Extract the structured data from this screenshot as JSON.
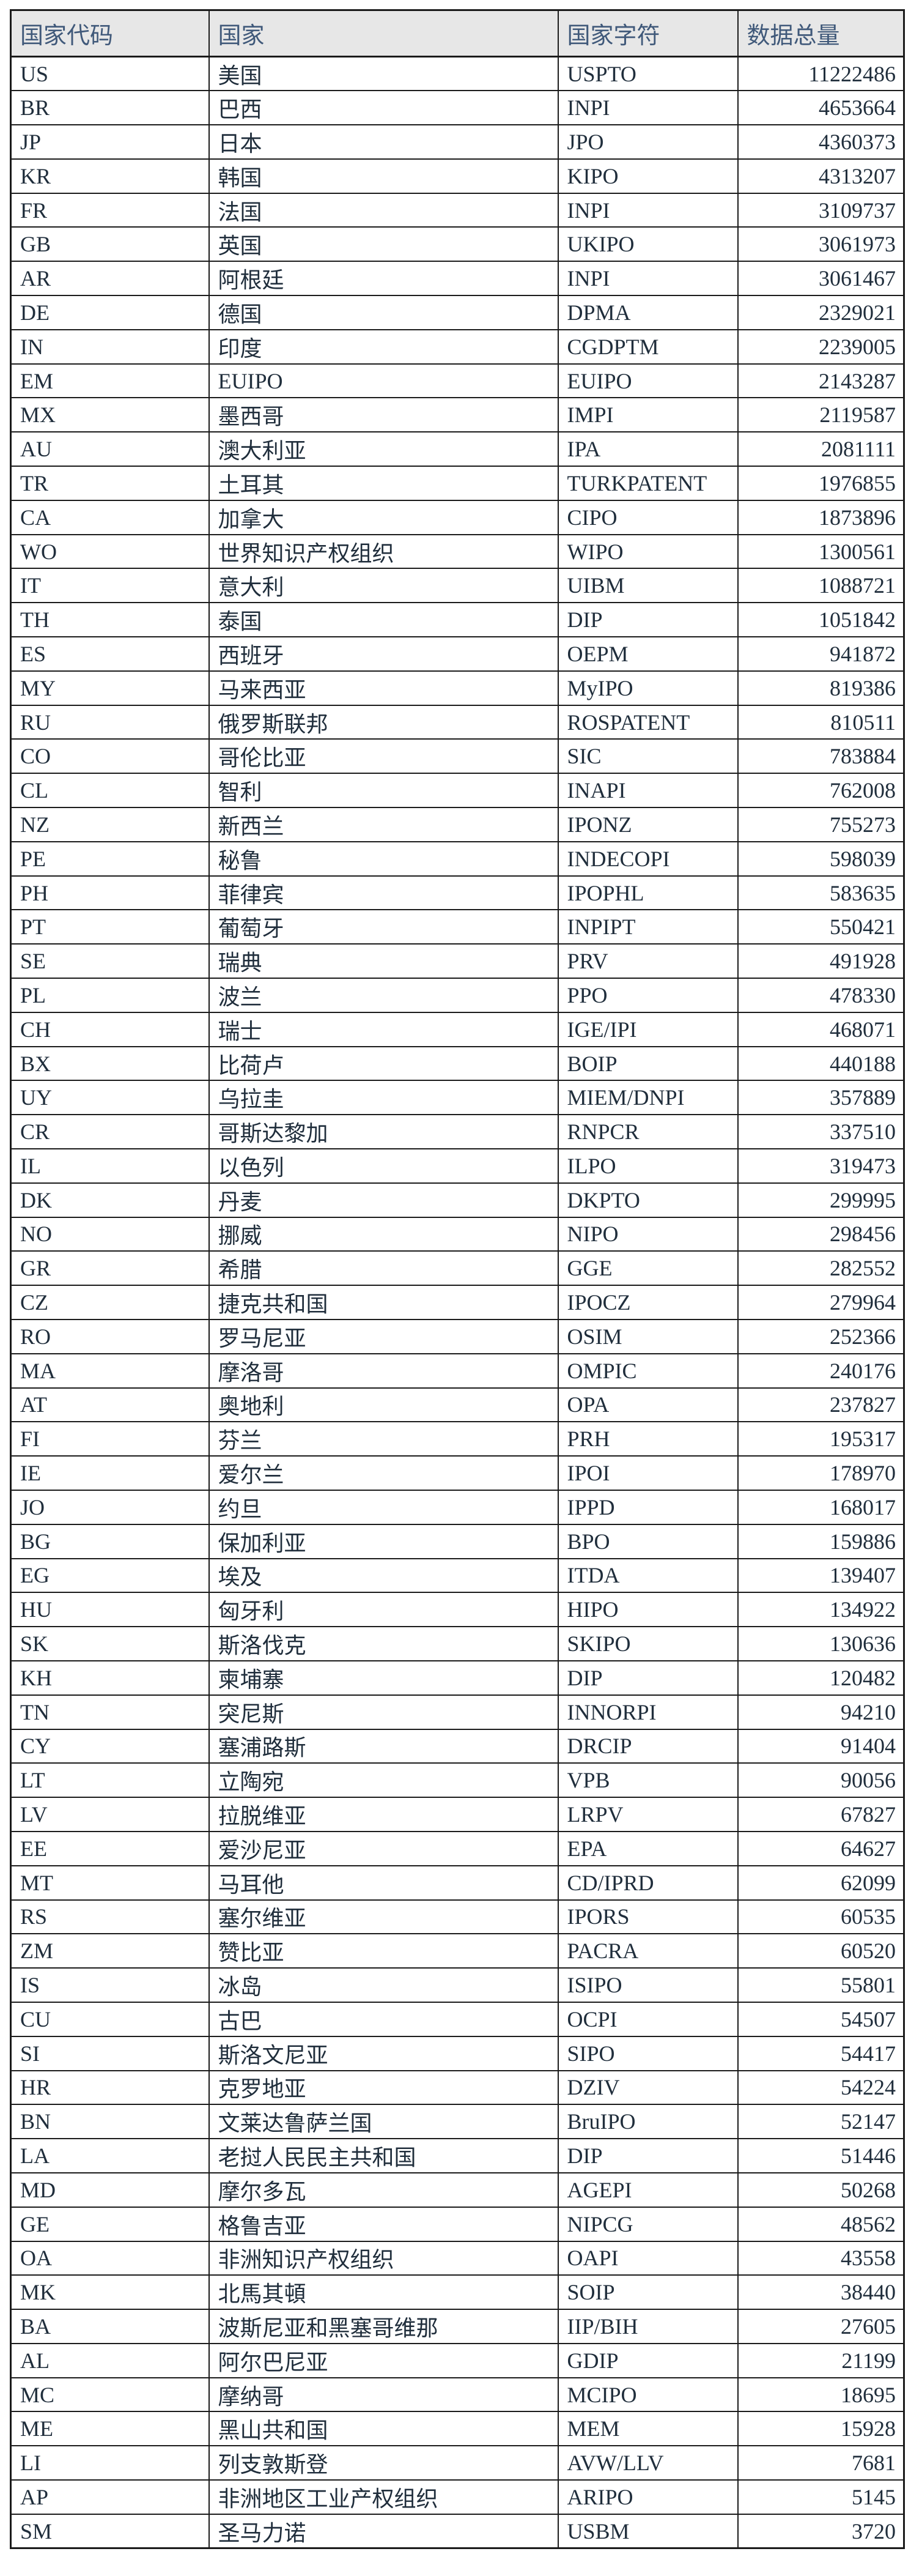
{
  "colors": {
    "header_bg": "#e7e7e7",
    "header_text": "#40597a",
    "body_text": "#202e3c",
    "border": "#1b1b1b"
  },
  "table": {
    "columns": [
      {
        "label": "国家代码"
      },
      {
        "label": "国家"
      },
      {
        "label": "国家字符"
      },
      {
        "label": "数据总量"
      }
    ],
    "rows": [
      {
        "code": "US",
        "country": "美国",
        "office": "USPTO",
        "total": 11222486
      },
      {
        "code": "BR",
        "country": "巴西",
        "office": "INPI",
        "total": 4653664
      },
      {
        "code": "JP",
        "country": "日本",
        "office": "JPO",
        "total": 4360373
      },
      {
        "code": "KR",
        "country": "韩国",
        "office": "KIPO",
        "total": 4313207
      },
      {
        "code": "FR",
        "country": "法国",
        "office": "INPI",
        "total": 3109737
      },
      {
        "code": "GB",
        "country": "英国",
        "office": "UKIPO",
        "total": 3061973
      },
      {
        "code": "AR",
        "country": "阿根廷",
        "office": "INPI",
        "total": 3061467
      },
      {
        "code": "DE",
        "country": "德国",
        "office": "DPMA",
        "total": 2329021
      },
      {
        "code": "IN",
        "country": "印度",
        "office": "CGDPTM",
        "total": 2239005
      },
      {
        "code": "EM",
        "country": "EUIPO",
        "office": "EUIPO",
        "total": 2143287
      },
      {
        "code": "MX",
        "country": "墨西哥",
        "office": "IMPI",
        "total": 2119587
      },
      {
        "code": "AU",
        "country": "澳大利亚",
        "office": "IPA",
        "total": 2081111
      },
      {
        "code": "TR",
        "country": "土耳其",
        "office": "TURKPATENT",
        "total": 1976855
      },
      {
        "code": "CA",
        "country": "加拿大",
        "office": "CIPO",
        "total": 1873896
      },
      {
        "code": "WO",
        "country": "世界知识产权组织",
        "office": "WIPO",
        "total": 1300561
      },
      {
        "code": "IT",
        "country": "意大利",
        "office": "UIBM",
        "total": 1088721
      },
      {
        "code": "TH",
        "country": "泰国",
        "office": "DIP",
        "total": 1051842
      },
      {
        "code": "ES",
        "country": "西班牙",
        "office": "OEPM",
        "total": 941872
      },
      {
        "code": "MY",
        "country": "马来西亚",
        "office": "MyIPO",
        "total": 819386
      },
      {
        "code": "RU",
        "country": "俄罗斯联邦",
        "office": "ROSPATENT",
        "total": 810511
      },
      {
        "code": "CO",
        "country": "哥伦比亚",
        "office": "SIC",
        "total": 783884
      },
      {
        "code": "CL",
        "country": "智利",
        "office": "INAPI",
        "total": 762008
      },
      {
        "code": "NZ",
        "country": "新西兰",
        "office": "IPONZ",
        "total": 755273
      },
      {
        "code": "PE",
        "country": "秘鲁",
        "office": "INDECOPI",
        "total": 598039
      },
      {
        "code": "PH",
        "country": "菲律宾",
        "office": "IPOPHL",
        "total": 583635
      },
      {
        "code": "PT",
        "country": "葡萄牙",
        "office": "INPIPT",
        "total": 550421
      },
      {
        "code": "SE",
        "country": "瑞典",
        "office": "PRV",
        "total": 491928
      },
      {
        "code": "PL",
        "country": "波兰",
        "office": "PPO",
        "total": 478330
      },
      {
        "code": "CH",
        "country": "瑞士",
        "office": "IGE/IPI",
        "total": 468071
      },
      {
        "code": "BX",
        "country": "比荷卢",
        "office": "BOIP",
        "total": 440188
      },
      {
        "code": "UY",
        "country": "乌拉圭",
        "office": "MIEM/DNPI",
        "total": 357889
      },
      {
        "code": "CR",
        "country": "哥斯达黎加",
        "office": "RNPCR",
        "total": 337510
      },
      {
        "code": "IL",
        "country": "以色列",
        "office": "ILPO",
        "total": 319473
      },
      {
        "code": "DK",
        "country": "丹麦",
        "office": "DKPTO",
        "total": 299995
      },
      {
        "code": "NO",
        "country": "挪威",
        "office": "NIPO",
        "total": 298456
      },
      {
        "code": "GR",
        "country": "希腊",
        "office": "GGE",
        "total": 282552
      },
      {
        "code": "CZ",
        "country": "捷克共和国",
        "office": "IPOCZ",
        "total": 279964
      },
      {
        "code": "RO",
        "country": "罗马尼亚",
        "office": "OSIM",
        "total": 252366
      },
      {
        "code": "MA",
        "country": "摩洛哥",
        "office": "OMPIC",
        "total": 240176
      },
      {
        "code": "AT",
        "country": "奥地利",
        "office": "OPA",
        "total": 237827
      },
      {
        "code": "FI",
        "country": "芬兰",
        "office": "PRH",
        "total": 195317
      },
      {
        "code": "IE",
        "country": "爱尔兰",
        "office": "IPOI",
        "total": 178970
      },
      {
        "code": "JO",
        "country": "约旦",
        "office": "IPPD",
        "total": 168017
      },
      {
        "code": "BG",
        "country": "保加利亚",
        "office": "BPO",
        "total": 159886
      },
      {
        "code": "EG",
        "country": "埃及",
        "office": "ITDA",
        "total": 139407
      },
      {
        "code": "HU",
        "country": "匈牙利",
        "office": "HIPO",
        "total": 134922
      },
      {
        "code": "SK",
        "country": "斯洛伐克",
        "office": "SKIPO",
        "total": 130636
      },
      {
        "code": "KH",
        "country": "柬埔寨",
        "office": "DIP",
        "total": 120482
      },
      {
        "code": "TN",
        "country": "突尼斯",
        "office": "INNORPI",
        "total": 94210
      },
      {
        "code": "CY",
        "country": "塞浦路斯",
        "office": "DRCIP",
        "total": 91404
      },
      {
        "code": "LT",
        "country": "立陶宛",
        "office": "VPB",
        "total": 90056
      },
      {
        "code": "LV",
        "country": "拉脱维亚",
        "office": "LRPV",
        "total": 67827
      },
      {
        "code": "EE",
        "country": "爱沙尼亚",
        "office": "EPA",
        "total": 64627
      },
      {
        "code": "MT",
        "country": "马耳他",
        "office": "CD/IPRD",
        "total": 62099
      },
      {
        "code": "RS",
        "country": "塞尔维亚",
        "office": "IPORS",
        "total": 60535
      },
      {
        "code": "ZM",
        "country": "赞比亚",
        "office": "PACRA",
        "total": 60520
      },
      {
        "code": "IS",
        "country": "冰岛",
        "office": "ISIPO",
        "total": 55801
      },
      {
        "code": "CU",
        "country": "古巴",
        "office": "OCPI",
        "total": 54507
      },
      {
        "code": "SI",
        "country": "斯洛文尼亚",
        "office": "SIPO",
        "total": 54417
      },
      {
        "code": "HR",
        "country": "克罗地亚",
        "office": "DZIV",
        "total": 54224
      },
      {
        "code": "BN",
        "country": "文莱达鲁萨兰国",
        "office": "BruIPO",
        "total": 52147
      },
      {
        "code": "LA",
        "country": "老挝人民民主共和国",
        "office": "DIP",
        "total": 51446
      },
      {
        "code": "MD",
        "country": "摩尔多瓦",
        "office": "AGEPI",
        "total": 50268
      },
      {
        "code": "GE",
        "country": "格鲁吉亚",
        "office": "NIPCG",
        "total": 48562
      },
      {
        "code": "OA",
        "country": "非洲知识产权组织",
        "office": "OAPI",
        "total": 43558
      },
      {
        "code": "MK",
        "country": "北馬其頓",
        "office": "SOIP",
        "total": 38440
      },
      {
        "code": "BA",
        "country": "波斯尼亚和黑塞哥维那",
        "office": "IIP/BIH",
        "total": 27605
      },
      {
        "code": "AL",
        "country": "阿尔巴尼亚",
        "office": "GDIP",
        "total": 21199
      },
      {
        "code": "MC",
        "country": "摩纳哥",
        "office": "MCIPO",
        "total": 18695
      },
      {
        "code": "ME",
        "country": "黑山共和国",
        "office": "MEM",
        "total": 15928
      },
      {
        "code": "LI",
        "country": "列支敦斯登",
        "office": "AVW/LLV",
        "total": 7681
      },
      {
        "code": "AP",
        "country": "非洲地区工业产权组织",
        "office": "ARIPO",
        "total": 5145
      },
      {
        "code": "SM",
        "country": "圣马力诺",
        "office": "USBM",
        "total": 3720
      }
    ]
  }
}
